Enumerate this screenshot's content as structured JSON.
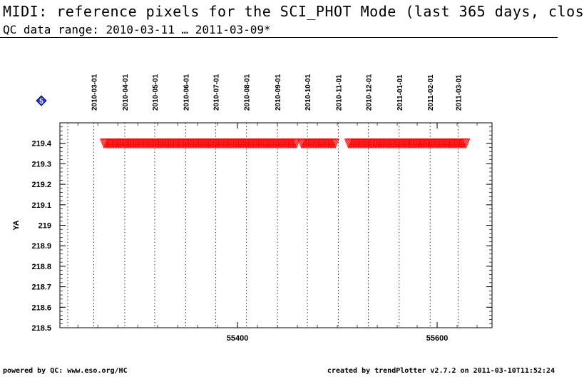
{
  "header": {
    "title": "MIDI: reference pixels for the SCI_PHOT Mode (last 365 days, clos",
    "subtitle": "QC data range: 2010-03-11 … 2011-03-09*"
  },
  "footer": {
    "left": "powered by QC: www.eso.org/HC",
    "right": "created by trendPlotter v2.7.2 on 2011-03-10T11:52:24"
  },
  "marker_label": "5",
  "chart_data": {
    "type": "scatter",
    "ylabel": "YA",
    "xlim": [
      55222,
      55655
    ],
    "ylim": [
      218.5,
      219.5
    ],
    "x_ticks": [
      55400,
      55600
    ],
    "y_ticks": [
      218.5,
      218.6,
      218.7,
      218.8,
      218.9,
      219,
      219.1,
      219.2,
      219.3,
      219.4
    ],
    "date_markers": [
      {
        "label": "2010-03-01",
        "mjd": 55256
      },
      {
        "label": "2010-04-01",
        "mjd": 55287
      },
      {
        "label": "2010-05-01",
        "mjd": 55317
      },
      {
        "label": "2010-06-01",
        "mjd": 55348
      },
      {
        "label": "2010-07-01",
        "mjd": 55378
      },
      {
        "label": "2010-08-01",
        "mjd": 55409
      },
      {
        "label": "2010-09-01",
        "mjd": 55440
      },
      {
        "label": "2010-10-01",
        "mjd": 55470
      },
      {
        "label": "2010-11-01",
        "mjd": 55501
      },
      {
        "label": "2010-12-01",
        "mjd": 55531
      },
      {
        "label": "2011-01-01",
        "mjd": 55562
      },
      {
        "label": "2011-02-01",
        "mjd": 55593
      },
      {
        "label": "2011-03-01",
        "mjd": 55621
      }
    ],
    "grid": "dotted vertical lines at month starts",
    "series": [
      {
        "color": "#ff0000",
        "marker": "triangle",
        "y_value": 219.4,
        "x_segments": [
          [
            55266,
            55459
          ],
          [
            55464,
            55498
          ],
          [
            55511,
            55629
          ]
        ]
      }
    ]
  }
}
